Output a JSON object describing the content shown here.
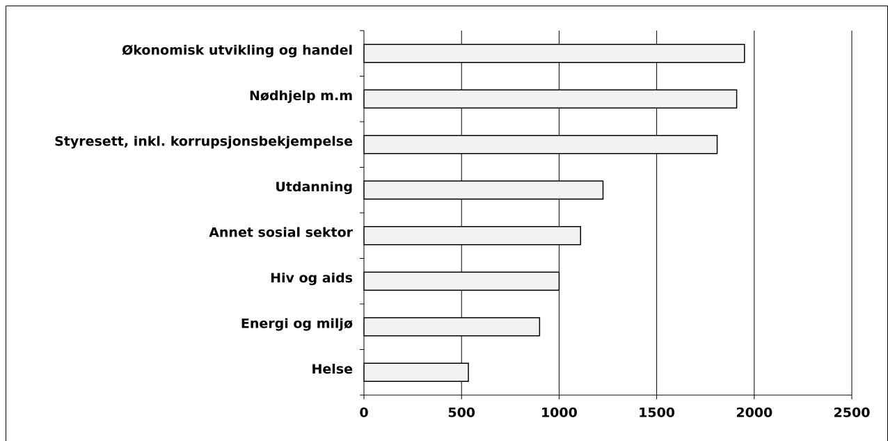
{
  "chart_data": {
    "type": "barh",
    "categories": [
      "Økonomisk utvikling og handel",
      "Nødhjelp m.m",
      "Styresett, inkl.  korrupsjonsbekjempelse",
      "Utdanning",
      "Annet sosial sektor",
      "Hiv og aids",
      "Energi og miljø",
      "Helse"
    ],
    "values": [
      1950,
      1910,
      1810,
      1225,
      1110,
      1000,
      900,
      535
    ],
    "color": "#f2f2f2",
    "xlim": [
      0,
      2500
    ],
    "xticks": [
      0,
      500,
      1000,
      1500,
      2000,
      2500
    ],
    "grid": true
  }
}
